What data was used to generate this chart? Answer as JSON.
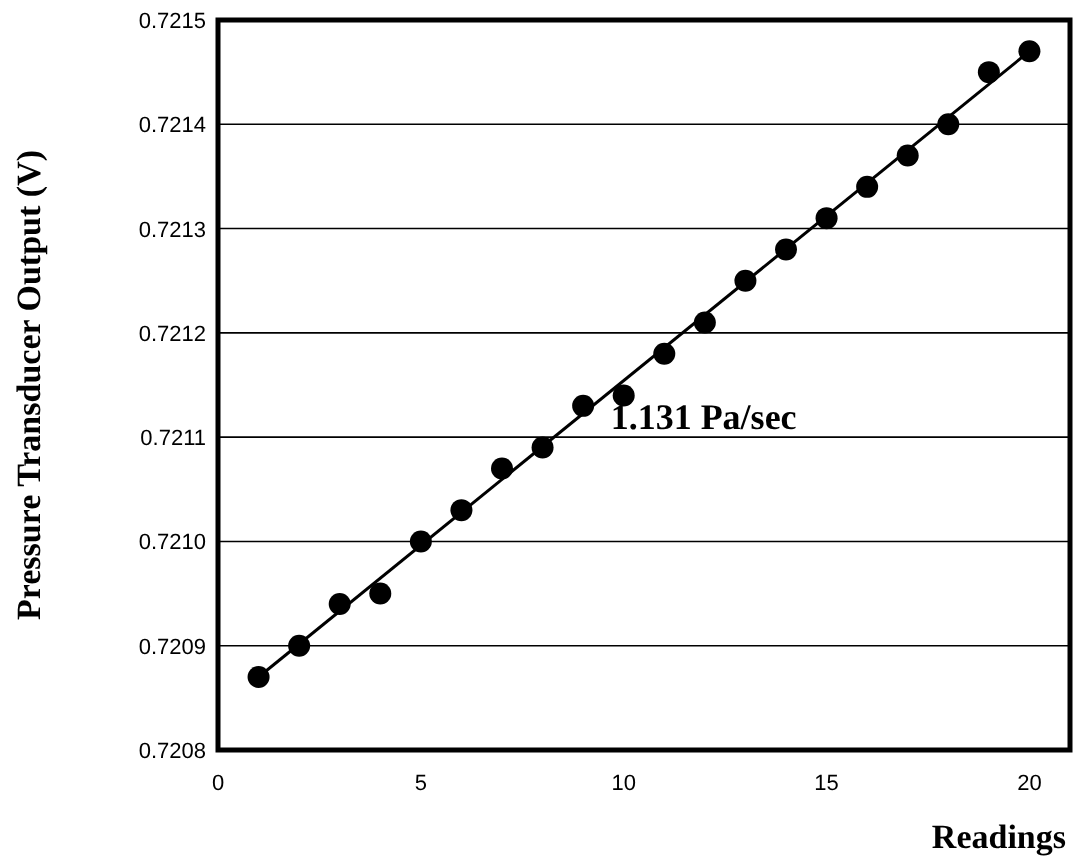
{
  "chart_data": {
    "type": "scatter",
    "xlabel": "Readings",
    "ylabel": "Pressure Transducer Output (V)",
    "xlim": [
      0,
      21
    ],
    "xticks": [
      0,
      5,
      10,
      15,
      20
    ],
    "ylim": [
      0.7208,
      0.7215
    ],
    "yticks": [
      0.7208,
      0.7209,
      {
        "value": 0.721,
        "label": "0.7210"
      },
      0.7211,
      0.7212,
      0.7213,
      0.7214,
      0.7215
    ],
    "grid": "y",
    "marker": "circle",
    "series": [
      {
        "color": "#000000",
        "x": [
          1,
          2,
          3,
          4,
          5,
          6,
          7,
          8,
          9,
          10,
          11,
          12,
          13,
          14,
          15,
          16,
          17,
          18,
          19,
          20
        ],
        "values": [
          0.72087,
          0.7209,
          0.72094,
          0.72095,
          0.721,
          0.72103,
          0.72107,
          0.72109,
          0.72113,
          0.72114,
          0.72118,
          0.72121,
          0.72125,
          0.72128,
          0.72131,
          0.72134,
          0.72137,
          0.7214,
          0.72145,
          0.72147
        ]
      },
      {
        "type": "line",
        "color": "#000000",
        "x": [
          1,
          20
        ],
        "values": [
          0.72087,
          0.72147
        ],
        "marker": "none",
        "line_style": "solid"
      }
    ],
    "annotations": [
      "1.131 Pa/sec"
    ]
  }
}
